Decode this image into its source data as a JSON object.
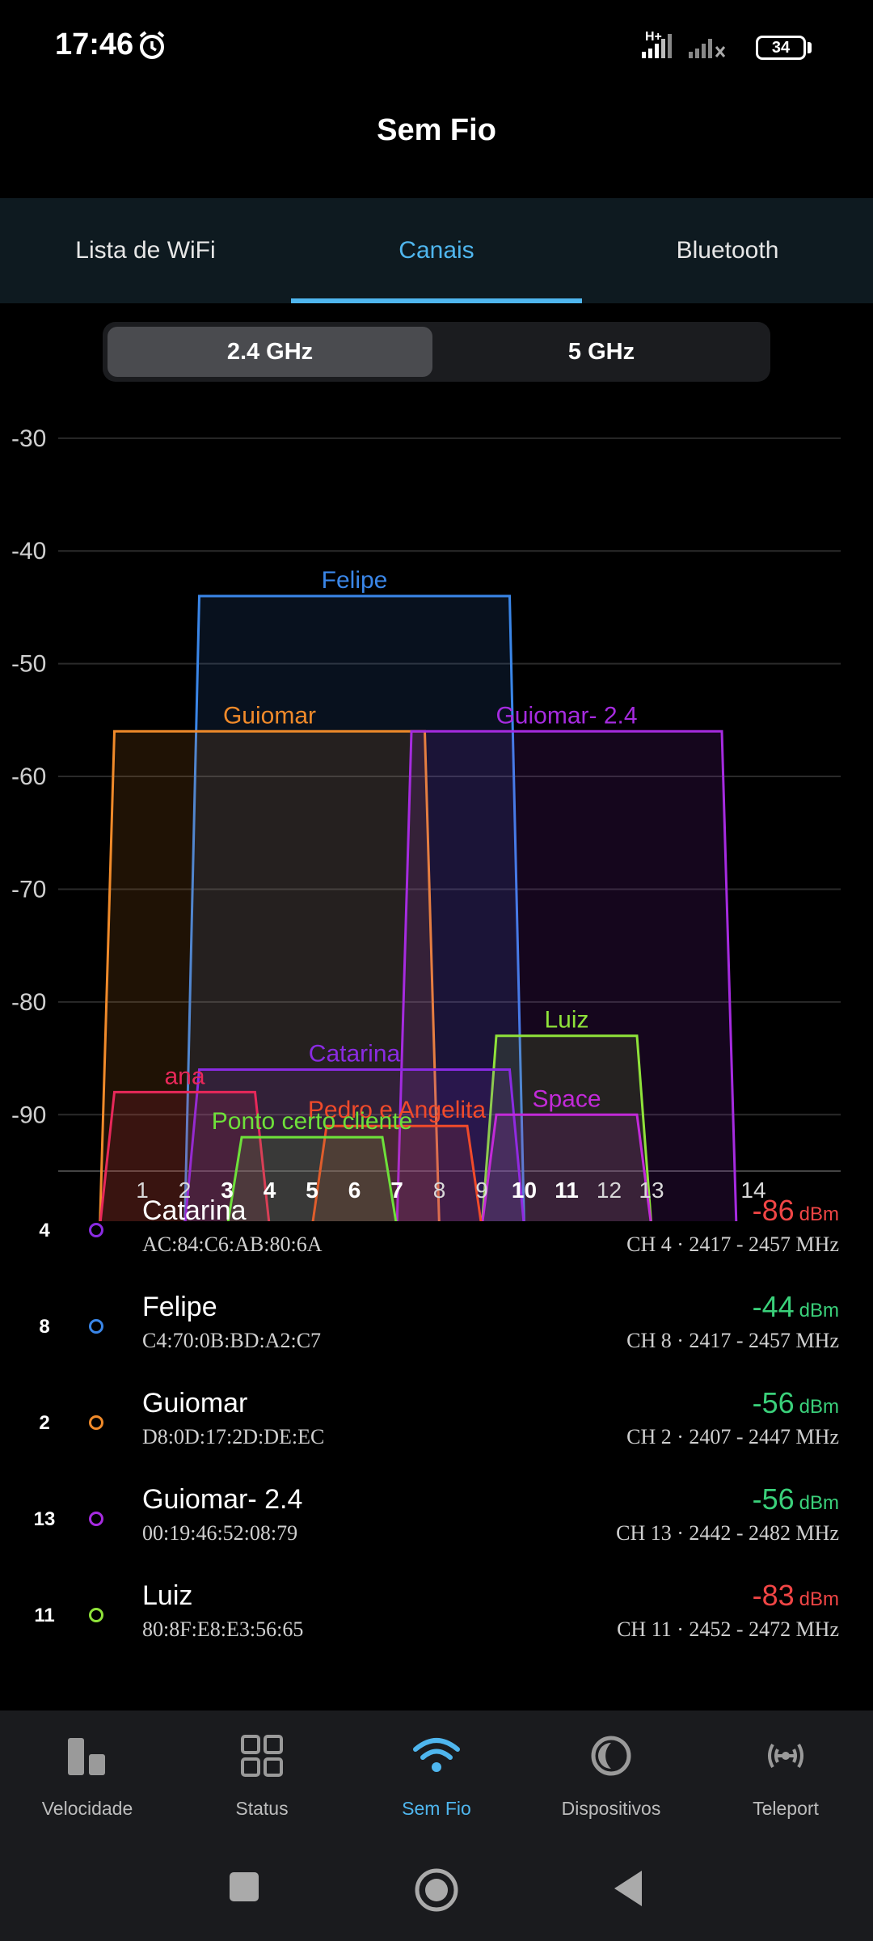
{
  "status_bar": {
    "time": "17:46",
    "network": "H+",
    "battery": "34"
  },
  "header": {
    "title": "Sem Fio"
  },
  "tabs": [
    {
      "label": "Lista de WiFi",
      "active": false
    },
    {
      "label": "Canais",
      "active": true
    },
    {
      "label": "Bluetooth",
      "active": false
    }
  ],
  "band_selector": [
    {
      "label": "2.4 GHz",
      "active": true
    },
    {
      "label": "5 GHz",
      "active": false
    }
  ],
  "chart_data": {
    "type": "area",
    "y_ticks": [
      -30,
      -40,
      -50,
      -60,
      -70,
      -80,
      -90
    ],
    "ylim": [
      -95,
      -27
    ],
    "x_ticks": [
      {
        "label": "1",
        "bold": false
      },
      {
        "label": "2",
        "bold": false
      },
      {
        "label": "3",
        "bold": true
      },
      {
        "label": "4",
        "bold": true
      },
      {
        "label": "5",
        "bold": true
      },
      {
        "label": "6",
        "bold": true
      },
      {
        "label": "7",
        "bold": true
      },
      {
        "label": "8",
        "bold": false
      },
      {
        "label": "9",
        "bold": false
      },
      {
        "label": "10",
        "bold": true
      },
      {
        "label": "11",
        "bold": true
      },
      {
        "label": "12",
        "bold": false
      },
      {
        "label": "13",
        "bold": false
      },
      {
        "label": "14",
        "bold": false
      }
    ],
    "grid": true,
    "networks": [
      {
        "name": "Felipe",
        "channel": 8,
        "freq_low": 2417,
        "freq_high": 2457,
        "dbm": -44,
        "color": "#3a86e8"
      },
      {
        "name": "Guiomar",
        "channel": 2,
        "freq_low": 2407,
        "freq_high": 2447,
        "dbm": -56,
        "color": "#f08a2a"
      },
      {
        "name": "Guiomar- 2.4",
        "channel": 13,
        "freq_low": 2442,
        "freq_high": 2482,
        "dbm": -56,
        "color": "#a62be0"
      },
      {
        "name": "Luiz",
        "channel": 11,
        "freq_low": 2452,
        "freq_high": 2472,
        "dbm": -83,
        "color": "#8fe23a"
      },
      {
        "name": "Catarina",
        "channel": 4,
        "freq_low": 2417,
        "freq_high": 2457,
        "dbm": -86,
        "color": "#8a2be2"
      },
      {
        "name": "ana",
        "channel": 2,
        "freq_low": 2407,
        "freq_high": 2427,
        "dbm": -88,
        "color": "#e8285a"
      },
      {
        "name": "Space",
        "channel": 11,
        "freq_low": 2452,
        "freq_high": 2472,
        "dbm": -90,
        "color": "#c22ad8"
      },
      {
        "name": "Pedro e Angelita",
        "channel": 7,
        "freq_low": 2432,
        "freq_high": 2452,
        "dbm": -91,
        "color": "#f04a2a"
      },
      {
        "name": "Ponto certo cliente",
        "channel": 5,
        "freq_low": 2422,
        "freq_high": 2442,
        "dbm": -92,
        "color": "#6ee03a"
      }
    ]
  },
  "list": [
    {
      "ch": "4",
      "name": "Catarina",
      "mac": "AC:84:C6:AB:80:6A",
      "signal": "-86",
      "unit": "dBm",
      "quality": "bad",
      "info": "CH 4 · 2417 - 2457 MHz",
      "color": "#8a2be2"
    },
    {
      "ch": "8",
      "name": "Felipe",
      "mac": "C4:70:0B:BD:A2:C7",
      "signal": "-44",
      "unit": "dBm",
      "quality": "good",
      "info": "CH 8 · 2417 - 2457 MHz",
      "color": "#3a86e8"
    },
    {
      "ch": "2",
      "name": "Guiomar",
      "mac": "D8:0D:17:2D:DE:EC",
      "signal": "-56",
      "unit": "dBm",
      "quality": "good",
      "info": "CH 2 · 2407 - 2447 MHz",
      "color": "#f08a2a"
    },
    {
      "ch": "13",
      "name": "Guiomar- 2.4",
      "mac": "00:19:46:52:08:79",
      "signal": "-56",
      "unit": "dBm",
      "quality": "good",
      "info": "CH 13 · 2442 - 2482 MHz",
      "color": "#a62be0"
    },
    {
      "ch": "11",
      "name": "Luiz",
      "mac": "80:8F:E8:E3:56:65",
      "signal": "-83",
      "unit": "dBm",
      "quality": "bad",
      "info": "CH 11 · 2452 - 2472 MHz",
      "color": "#8fe23a"
    }
  ],
  "bottom_nav": [
    {
      "label": "Velocidade",
      "icon": "speed-icon",
      "active": false
    },
    {
      "label": "Status",
      "icon": "status-grid-icon",
      "active": false
    },
    {
      "label": "Sem Fio",
      "icon": "wifi-icon",
      "active": true
    },
    {
      "label": "Dispositivos",
      "icon": "devices-icon",
      "active": false
    },
    {
      "label": "Teleport",
      "icon": "teleport-icon",
      "active": false
    }
  ]
}
